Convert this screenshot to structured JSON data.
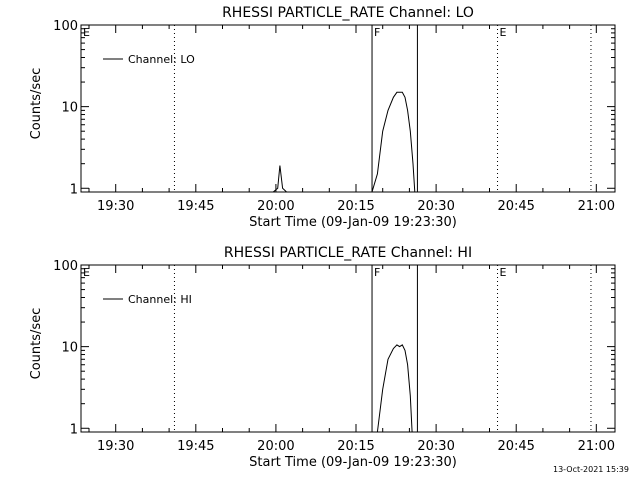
{
  "footer_date": "13-Oct-2021 15:39",
  "colors": {
    "background": "#ffffff",
    "foreground": "#000000"
  },
  "chart_data": [
    {
      "type": "line",
      "title": "RHESSI PARTICLE_RATE Channel: LO",
      "xlabel": "Start Time (09-Jan-09 19:23:30)",
      "ylabel": "Counts/sec",
      "y_scale": "log",
      "ylim": [
        0.9,
        100
      ],
      "y_ticks": [
        {
          "value": 1,
          "label": "1"
        },
        {
          "value": 10,
          "label": "10"
        },
        {
          "value": 100,
          "label": "100"
        }
      ],
      "xlim": [
        "19:23:30",
        "21:03:30"
      ],
      "x_ticks": [
        "19:30",
        "19:45",
        "20:00",
        "20:15",
        "20:30",
        "20:45",
        "21:00"
      ],
      "legend": {
        "position": "top-left",
        "entries": [
          "Channel: LO"
        ]
      },
      "region_markers": [
        {
          "label": "E",
          "time": "19:23:30",
          "style": "dotted"
        },
        {
          "label": "",
          "time": "19:41:00",
          "style": "dotted"
        },
        {
          "label": "F",
          "time": "20:18:00",
          "style": "solid"
        },
        {
          "label": "",
          "time": "20:26:30",
          "style": "solid"
        },
        {
          "label": "E",
          "time": "20:41:30",
          "style": "dotted"
        },
        {
          "label": "",
          "time": "20:59:00",
          "style": "dotted"
        }
      ],
      "series": [
        {
          "name": "Channel: LO",
          "x": [
            "19:59:30",
            "20:00:20",
            "20:00:45",
            "20:01:15",
            "20:02:00",
            "20:18:00",
            "20:19:00",
            "20:20:00",
            "20:21:00",
            "20:22:00",
            "20:22:40",
            "20:23:10",
            "20:23:40",
            "20:24:10",
            "20:24:40",
            "20:25:10",
            "20:25:40",
            "20:26:00"
          ],
          "y": [
            0.9,
            1.0,
            1.9,
            1.0,
            0.9,
            0.9,
            1.5,
            5,
            9,
            13,
            15,
            15,
            15,
            13,
            9,
            5,
            2,
            0.9
          ]
        }
      ]
    },
    {
      "type": "line",
      "title": "RHESSI PARTICLE_RATE Channel: HI",
      "xlabel": "Start Time (09-Jan-09 19:23:30)",
      "ylabel": "Counts/sec",
      "y_scale": "log",
      "ylim": [
        0.9,
        100
      ],
      "y_ticks": [
        {
          "value": 1,
          "label": "1"
        },
        {
          "value": 10,
          "label": "10"
        },
        {
          "value": 100,
          "label": "100"
        }
      ],
      "xlim": [
        "19:23:30",
        "21:03:30"
      ],
      "x_ticks": [
        "19:30",
        "19:45",
        "20:00",
        "20:15",
        "20:30",
        "20:45",
        "21:00"
      ],
      "legend": {
        "position": "top-left",
        "entries": [
          "Channel: HI"
        ]
      },
      "region_markers": [
        {
          "label": "E",
          "time": "19:23:30",
          "style": "dotted"
        },
        {
          "label": "",
          "time": "19:41:00",
          "style": "dotted"
        },
        {
          "label": "F",
          "time": "20:18:00",
          "style": "solid"
        },
        {
          "label": "",
          "time": "20:26:30",
          "style": "solid"
        },
        {
          "label": "E",
          "time": "20:41:30",
          "style": "dotted"
        },
        {
          "label": "",
          "time": "20:59:00",
          "style": "dotted"
        }
      ],
      "series": [
        {
          "name": "Channel: HI",
          "x": [
            "20:19:00",
            "20:20:00",
            "20:21:00",
            "20:22:00",
            "20:22:40",
            "20:23:10",
            "20:23:40",
            "20:24:10",
            "20:24:40",
            "20:25:10",
            "20:25:30"
          ],
          "y": [
            0.9,
            3,
            7,
            9.5,
            10.5,
            10,
            10.5,
            9,
            6,
            2.5,
            0.9
          ]
        }
      ]
    }
  ]
}
